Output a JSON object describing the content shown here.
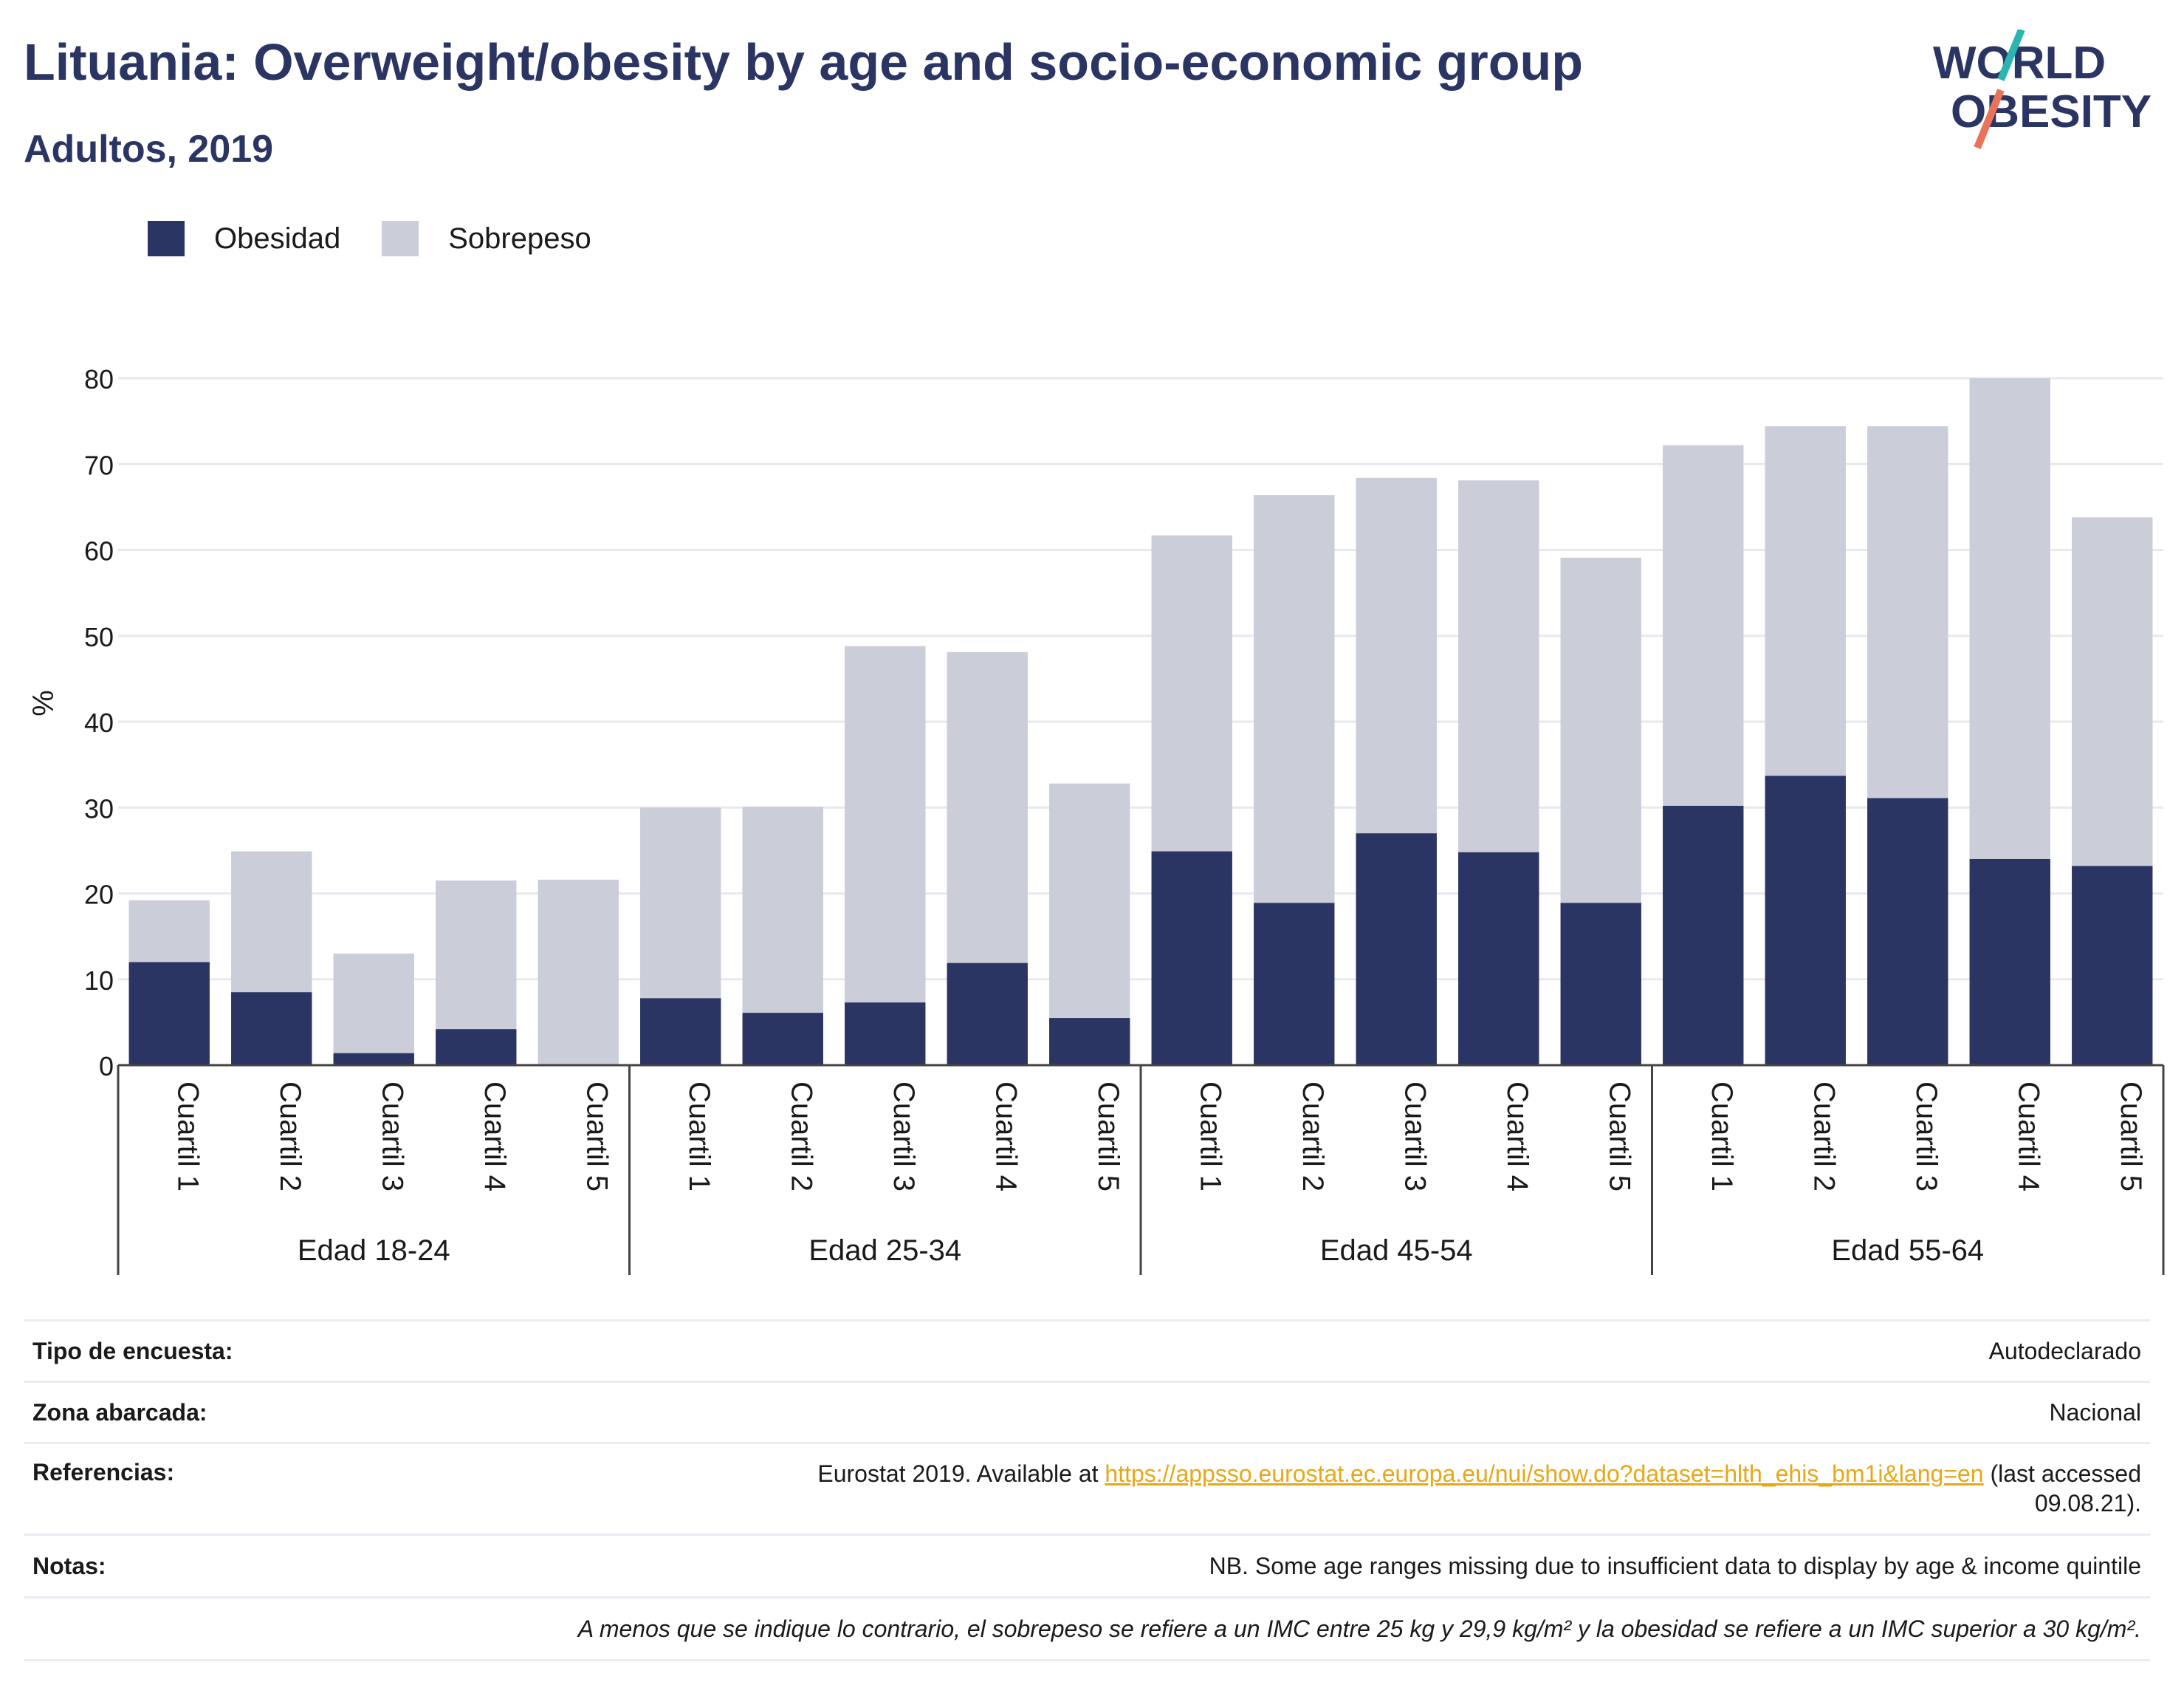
{
  "header": {
    "title": "Lituania: Overweight/obesity by age and socio-economic group",
    "subtitle": "Adultos, 2019",
    "logo_line1": "WORLD",
    "logo_line2": "OBESITY"
  },
  "legend": {
    "items": [
      {
        "label": "Obesidad",
        "color": "#2b3563"
      },
      {
        "label": "Sobrepeso",
        "color": "#cbcdd9"
      }
    ]
  },
  "chart_data": {
    "type": "bar",
    "stacked": true,
    "ylabel": "%",
    "ylim": [
      0,
      80
    ],
    "yticks": [
      0,
      10,
      20,
      30,
      40,
      50,
      60,
      70,
      80
    ],
    "grid": true,
    "legend_position": "top-left",
    "groups": [
      {
        "label": "Edad 18-24",
        "categories": [
          "Cuartil 1",
          "Cuartil 2",
          "Cuartil 3",
          "Cuartil 4",
          "Cuartil 5"
        ]
      },
      {
        "label": "Edad 25-34",
        "categories": [
          "Cuartil 1",
          "Cuartil 2",
          "Cuartil 3",
          "Cuartil 4",
          "Cuartil 5"
        ]
      },
      {
        "label": "Edad 45-54",
        "categories": [
          "Cuartil 1",
          "Cuartil 2",
          "Cuartil 3",
          "Cuartil 4",
          "Cuartil 5"
        ]
      },
      {
        "label": "Edad 55-64",
        "categories": [
          "Cuartil 1",
          "Cuartil 2",
          "Cuartil 3",
          "Cuartil 4",
          "Cuartil 5"
        ]
      }
    ],
    "series": [
      {
        "name": "Obesidad",
        "color": "#2b3563",
        "values": [
          12.0,
          8.5,
          1.4,
          4.2,
          0,
          7.8,
          6.1,
          7.3,
          11.9,
          5.5,
          24.9,
          18.9,
          27.0,
          24.8,
          18.9,
          30.2,
          33.7,
          31.1,
          24.0,
          23.2
        ]
      },
      {
        "name": "Sobrepeso",
        "color": "#cbcdd9",
        "values": [
          7.2,
          16.4,
          11.6,
          17.3,
          21.6,
          22.2,
          24.0,
          41.5,
          36.2,
          27.3,
          36.8,
          47.5,
          41.4,
          43.3,
          40.2,
          42.0,
          40.7,
          43.3,
          56.0,
          40.6
        ]
      }
    ]
  },
  "info": {
    "survey_label": "Tipo de encuesta:",
    "survey_value": "Autodeclarado",
    "area_label": "Zona abarcada:",
    "area_value": "Nacional",
    "refs_label": "Referencias:",
    "refs_prefix": "Eurostat 2019. Available at ",
    "refs_link": "https://appsso.eurostat.ec.europa.eu/nui/show.do?dataset=hlth_ehis_bm1i&lang=en",
    "refs_suffix_1": " (last accessed",
    "refs_suffix_2": "09.08.21).",
    "notes_label": "Notas:",
    "notes_value": "NB. Some age ranges missing due to insufficient data to display by age & income quintile",
    "footnote": "A menos que se indique lo contrario, el sobrepeso se refiere a un IMC entre 25 kg y 29,9 kg/m² y la obesidad se refiere a un IMC superior a 30 kg/m²."
  }
}
